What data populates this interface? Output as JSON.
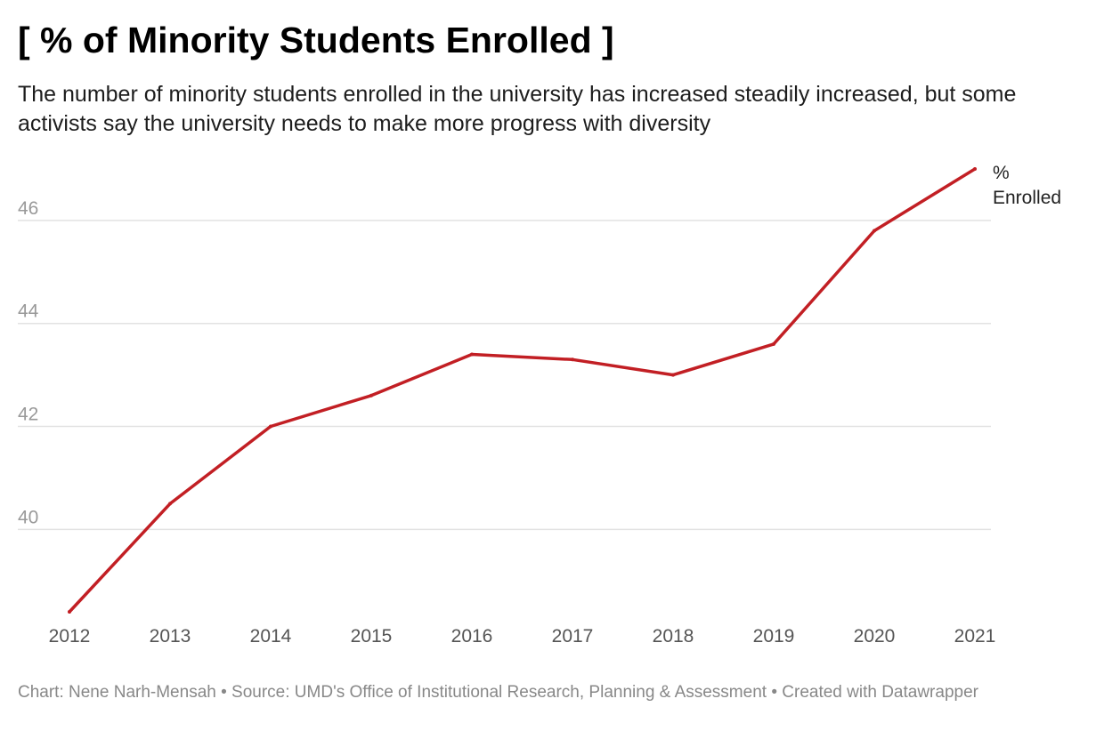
{
  "header": {
    "title": "[ % of Minority Students Enrolled ]",
    "subtitle": "The number of minority students enrolled in the university has increased steadily increased, but some activists say the university needs to make more progress with diversity"
  },
  "footer": {
    "credit": "Chart: Nene Narh-Mensah",
    "separator": " • ",
    "source": "Source: UMD's Office of Institutional Research, Planning & Assessment",
    "created": "Created with Datawrapper"
  },
  "chart_data": {
    "type": "line",
    "title": "[ % of Minority Students Enrolled ]",
    "xlabel": "",
    "ylabel": "",
    "x": [
      "2012",
      "2013",
      "2014",
      "2015",
      "2016",
      "2017",
      "2018",
      "2019",
      "2020",
      "2021"
    ],
    "series": [
      {
        "name": "% Enrolled",
        "label_lines": [
          "%",
          "Enrolled"
        ],
        "values": [
          38.4,
          40.5,
          42.0,
          42.6,
          43.4,
          43.3,
          43.0,
          43.6,
          45.8,
          47.0
        ],
        "color": "#c21f24"
      }
    ],
    "ylim": [
      38.4,
      47.0
    ],
    "yticks": [
      40,
      42,
      44,
      46
    ],
    "grid": true,
    "legend": "direct-label-right"
  },
  "colors": {
    "line": "#c21f24",
    "grid": "#e2e2e2",
    "axis_text": "#999999",
    "x_tick_text": "#555555"
  }
}
